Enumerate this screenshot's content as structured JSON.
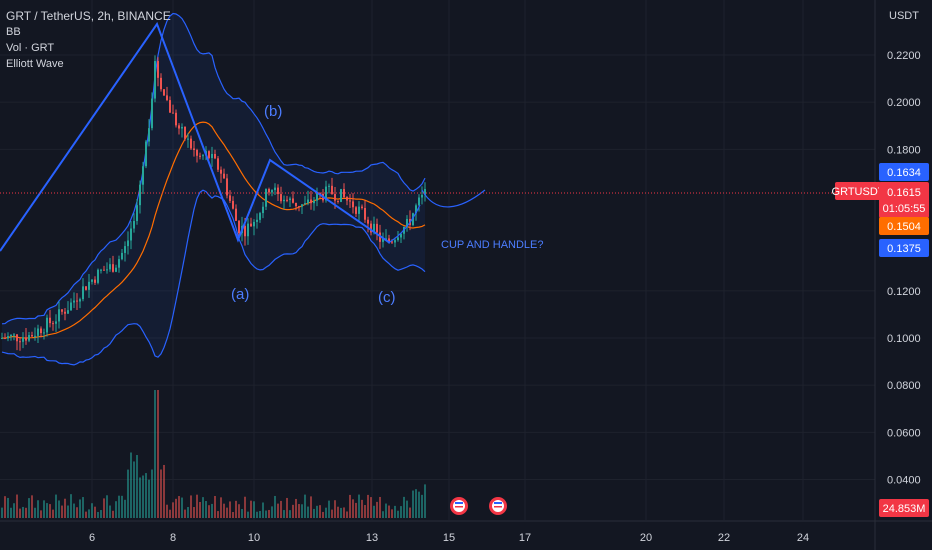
{
  "legend": {
    "title": "GRT / TetherUS, 2h, BINANCE",
    "indicators": [
      "BB",
      "Vol · GRT",
      "Elliott Wave"
    ]
  },
  "price_axis": {
    "currency": "USDT",
    "ticks": [
      "0.2200",
      "0.2000",
      "0.1800",
      "0.1200",
      "0.1000",
      "0.0800",
      "0.0600",
      "0.0400"
    ]
  },
  "time_axis": {
    "ticks": [
      "6",
      "8",
      "10",
      "13",
      "15",
      "17",
      "20",
      "22",
      "24"
    ]
  },
  "badges": {
    "bb_upper": "0.1634",
    "symbol": "GRTUSDT",
    "last_price": "0.1615",
    "countdown": "01:05:55",
    "bb_basis": "0.1504",
    "bb_lower": "0.1375",
    "volume": "24.853M"
  },
  "annotations": {
    "wave_a": "(a)",
    "wave_b": "(b)",
    "wave_c": "(c)",
    "pattern": "CUP AND HANDLE?"
  },
  "colors": {
    "background": "#131722",
    "up": "#26a69a",
    "down": "#ef5350",
    "bb_band": "#2962ff",
    "bb_basis": "#ff6d00",
    "wave": "#2962ff",
    "last_price": "#f23645",
    "text": "#d1d4dc"
  },
  "chart_data": {
    "type": "candlestick",
    "symbol": "GRTUSDT",
    "exchange": "BINANCE",
    "interval": "2h",
    "last_price": 0.1615,
    "bollinger": {
      "upper": 0.1634,
      "basis": 0.1504,
      "lower": 0.1375
    },
    "volume_last": "24.853M",
    "price_path": [
      [
        0,
        0.1
      ],
      [
        30,
        0.101
      ],
      [
        40,
        0.104
      ],
      [
        55,
        0.108
      ],
      [
        70,
        0.114
      ],
      [
        85,
        0.122
      ],
      [
        100,
        0.128
      ],
      [
        115,
        0.131
      ],
      [
        125,
        0.138
      ],
      [
        135,
        0.15
      ],
      [
        140,
        0.165
      ],
      [
        148,
        0.188
      ],
      [
        155,
        0.215
      ],
      [
        163,
        0.205
      ],
      [
        172,
        0.195
      ],
      [
        180,
        0.188
      ],
      [
        190,
        0.182
      ],
      [
        198,
        0.176
      ],
      [
        207,
        0.178
      ],
      [
        215,
        0.174
      ],
      [
        222,
        0.17
      ],
      [
        230,
        0.158
      ],
      [
        238,
        0.147
      ],
      [
        246,
        0.146
      ],
      [
        254,
        0.15
      ],
      [
        262,
        0.156
      ],
      [
        270,
        0.165
      ],
      [
        278,
        0.16
      ],
      [
        290,
        0.158
      ],
      [
        305,
        0.156
      ],
      [
        318,
        0.16
      ],
      [
        330,
        0.162
      ],
      [
        342,
        0.16
      ],
      [
        355,
        0.156
      ],
      [
        368,
        0.15
      ],
      [
        376,
        0.144
      ],
      [
        384,
        0.14
      ],
      [
        392,
        0.142
      ],
      [
        400,
        0.146
      ],
      [
        408,
        0.148
      ],
      [
        414,
        0.154
      ],
      [
        420,
        0.158
      ],
      [
        426,
        0.1615
      ]
    ]
  }
}
